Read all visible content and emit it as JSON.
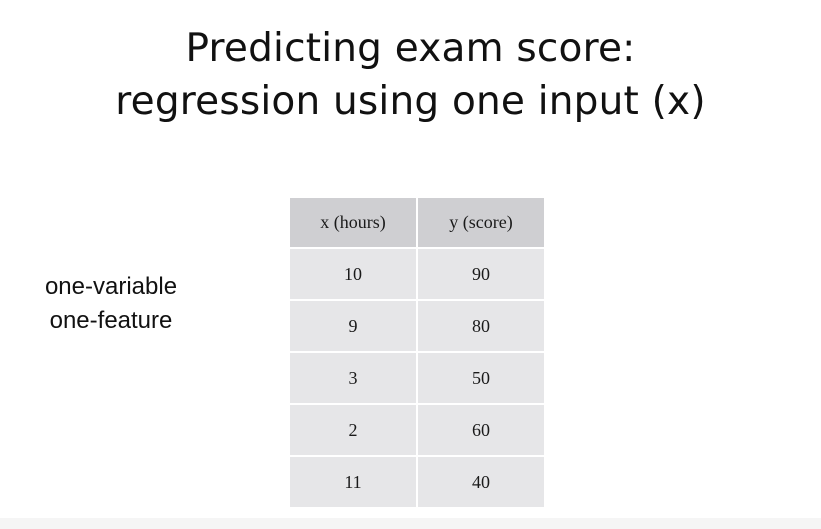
{
  "title": {
    "line1": "Predicting exam score:",
    "line2": "regression using one input (x)"
  },
  "side_label": {
    "line1": "one-variable",
    "line2": "one-feature"
  },
  "table": {
    "headers": [
      "x (hours)",
      "y (score)"
    ],
    "rows": [
      [
        "10",
        "90"
      ],
      [
        "9",
        "80"
      ],
      [
        "3",
        "50"
      ],
      [
        "2",
        "60"
      ],
      [
        "11",
        "40"
      ]
    ]
  },
  "colors": {
    "header_fill": "#cfcfd2",
    "cell_fill": "#e6e6e8",
    "text": "#111111"
  }
}
